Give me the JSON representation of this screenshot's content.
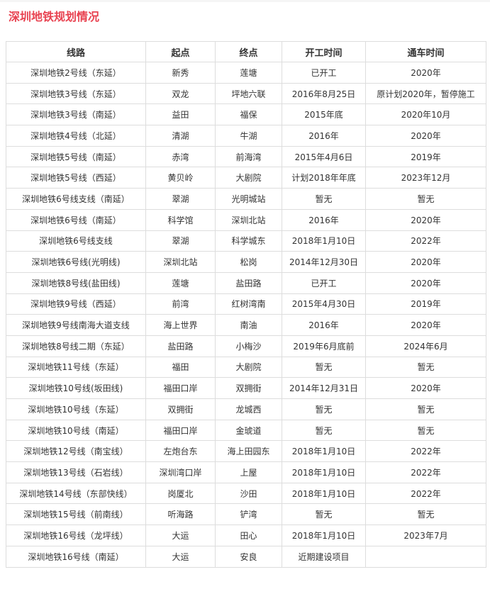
{
  "page": {
    "title": "深圳地铁规划情况"
  },
  "colors": {
    "title": "#e84250",
    "border": "#dddddd",
    "text": "#333333"
  },
  "table": {
    "headers": [
      "线路",
      "起点",
      "终点",
      "开工时间",
      "通车时间"
    ],
    "rows": [
      [
        "深圳地铁2号线（东延）",
        "新秀",
        "莲塘",
        "已开工",
        "2020年"
      ],
      [
        "深圳地铁3号线（东延）",
        "双龙",
        "坪地六联",
        "2016年8月25日",
        "原计划2020年，暂停施工"
      ],
      [
        "深圳地铁3号线（南延）",
        "益田",
        "福保",
        "2015年底",
        "2020年10月"
      ],
      [
        "深圳地铁4号线（北延）",
        "清湖",
        "牛湖",
        "2016年",
        "2020年"
      ],
      [
        "深圳地铁5号线（南延）",
        "赤湾",
        "前海湾",
        "2015年4月6日",
        "2019年"
      ],
      [
        "深圳地铁5号线（西延）",
        "黄贝岭",
        "大剧院",
        "计划2018年年底",
        "2023年12月"
      ],
      [
        "深圳地铁6号线支线（南延）",
        "翠湖",
        "光明城站",
        "暂无",
        "暂无"
      ],
      [
        "深圳地铁6号线（南延）",
        "科学馆",
        "深圳北站",
        "2016年",
        "2020年"
      ],
      [
        "深圳地铁6号线支线",
        "翠湖",
        "科学城东",
        "2018年1月10日",
        "2022年"
      ],
      [
        "深圳地铁6号线(光明线)",
        "深圳北站",
        "松岗",
        "2014年12月30日",
        "2020年"
      ],
      [
        "深圳地铁8号线(盐田线)",
        "莲塘",
        "盐田路",
        "已开工",
        "2020年"
      ],
      [
        "深圳地铁9号线（西延）",
        "前湾",
        "红树湾南",
        "2015年4月30日",
        "2019年"
      ],
      [
        "深圳地铁9号线南海大道支线",
        "海上世界",
        "南油",
        "2016年",
        "2020年"
      ],
      [
        "深圳地铁8号线二期（东延）",
        "盐田路",
        "小梅沙",
        "2019年6月底前",
        "2024年6月"
      ],
      [
        "深圳地铁11号线（东延）",
        "福田",
        "大剧院",
        "暂无",
        "暂无"
      ],
      [
        "深圳地铁10号线(坂田线)",
        "福田口岸",
        "双拥街",
        "2014年12月31日",
        "2020年"
      ],
      [
        "深圳地铁10号线（东延）",
        "双拥街",
        "龙城西",
        "暂无",
        "暂无"
      ],
      [
        "深圳地铁10号线（南延）",
        "福田口岸",
        "金琥道",
        "暂无",
        "暂无"
      ],
      [
        "深圳地铁12号线（南宝线）",
        "左炮台东",
        "海上田园东",
        "2018年1月10日",
        "2022年"
      ],
      [
        "深圳地铁13号线（石岩线）",
        "深圳湾口岸",
        "上屋",
        "2018年1月10日",
        "2022年"
      ],
      [
        "深圳地铁14号线（东部快线）",
        "岗厦北",
        "沙田",
        "2018年1月10日",
        "2022年"
      ],
      [
        "深圳地铁15号线（前南线）",
        "听海路",
        "铲湾",
        "暂无",
        "暂无"
      ],
      [
        "深圳地铁16号线（龙坪线）",
        "大运",
        "田心",
        "2018年1月10日",
        "2023年7月"
      ],
      [
        "深圳地铁16号线（南延）",
        "大运",
        "安良",
        "近期建设项目",
        ""
      ]
    ]
  }
}
